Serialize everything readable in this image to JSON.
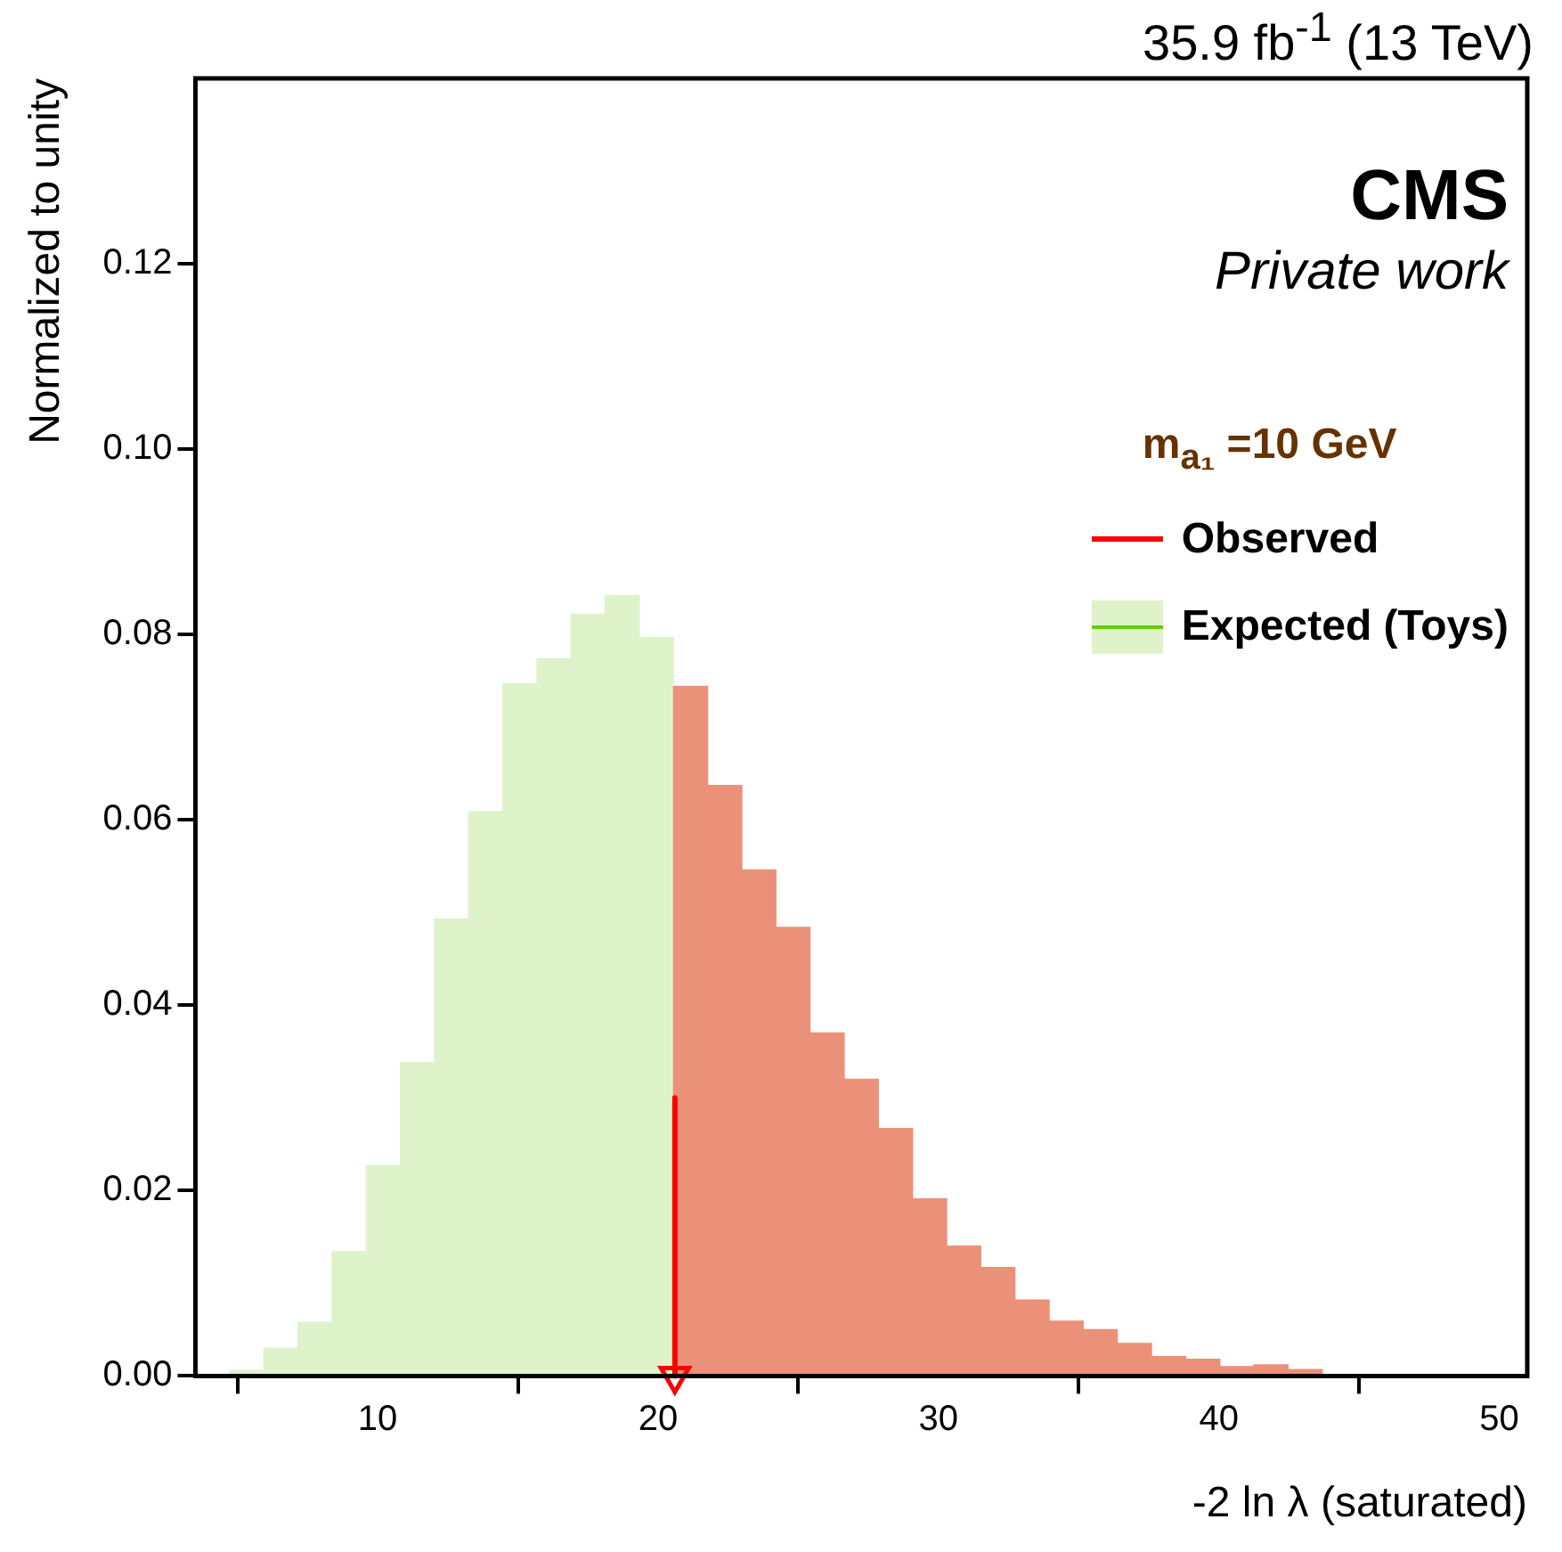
{
  "chart_data": {
    "type": "histogram",
    "title": "35.9 fb$^{-1}$ (13 TeV)",
    "xlabel": "-2 ln λ (saturated)",
    "ylabel": "Normalized to unity",
    "legend_title": "m$_{a₁}$ =10 GeV",
    "annotations": [
      "CMS",
      "Private work"
    ],
    "bins": [
      3.5,
      4.72,
      5.94,
      7.15,
      8.37,
      9.59,
      10.81,
      12.03,
      13.24,
      14.46,
      15.68,
      16.9,
      18.11,
      19.33,
      20.55,
      21.77,
      22.99,
      24.2,
      25.42,
      26.64,
      27.86,
      29.08,
      30.29,
      31.51,
      32.73,
      33.95,
      35.16,
      36.38,
      37.6,
      38.82,
      40.04,
      41.25,
      42.47,
      43.69,
      44.91,
      46.13,
      47.34,
      48.56,
      49.78,
      51.0
    ],
    "series": [
      {
        "name": "Observed",
        "type": "line",
        "color": "#ff0000",
        "x": [
          20.6,
          20.6
        ],
        "values": [
          0.03,
          0
        ]
      },
      {
        "name": "Expected (Toys)",
        "color": "#66cc00",
        "values": [
          0,
          0.0006,
          0.003,
          0.0058,
          0.0134,
          0.0227,
          0.0338,
          0.0493,
          0.0609,
          0.0747,
          0.0774,
          0.0822,
          0.0842,
          0.0797,
          0.0744,
          0.0637,
          0.0546,
          0.0484,
          0.037,
          0.032,
          0.0267,
          0.0191,
          0.014,
          0.0117,
          0.0082,
          0.0059,
          0.005,
          0.0035,
          0.0021,
          0.0018,
          0.001,
          0.0012,
          0.0007,
          null,
          null,
          null,
          0,
          0,
          0
        ],
        "colors": [
          "#dff3cb",
          "#dff3cb",
          "#dff3cb",
          "#dff3cb",
          "#dff3cb",
          "#dff3cb",
          "#dff3cb",
          "#dff3cb",
          "#dff3cb",
          "#dff3cb",
          "#dff3cb",
          "#dff3cb",
          "#dff3cb",
          "#dff3cb",
          "#eb9179",
          "#eb9179",
          "#eb9179",
          "#eb9179",
          "#eb9179",
          "#eb9179",
          "#eb9179",
          "#eb9179",
          "#eb9179",
          "#eb9179",
          "#eb9179",
          "#eb9179",
          "#eb9179",
          "#eb9179",
          "#eb9179",
          "#eb9179",
          "#eb9179",
          "#eb9179",
          "#eb9179",
          "#eb9179",
          "#eb9179",
          "#eb9179",
          "#eb9179",
          "#eb9179",
          "#eb9179"
        ]
      }
    ],
    "xlim": [
      3.5,
      51
    ],
    "xticks": [
      10,
      20,
      30,
      40,
      50
    ],
    "ylim": [
      0,
      0.14
    ],
    "yticks": [
      {
        "value": 0,
        "label": "0.00"
      },
      {
        "value": 0.02,
        "label": "0.02"
      },
      {
        "value": 0.04,
        "label": "0.04"
      },
      {
        "value": 0.06,
        "label": "0.06"
      },
      {
        "value": 0.08,
        "label": "0.08"
      },
      {
        "value": 0.1,
        "label": "0.10"
      },
      {
        "value": 0.12,
        "label": "0.12"
      }
    ],
    "grid": false,
    "legend": "top right"
  }
}
